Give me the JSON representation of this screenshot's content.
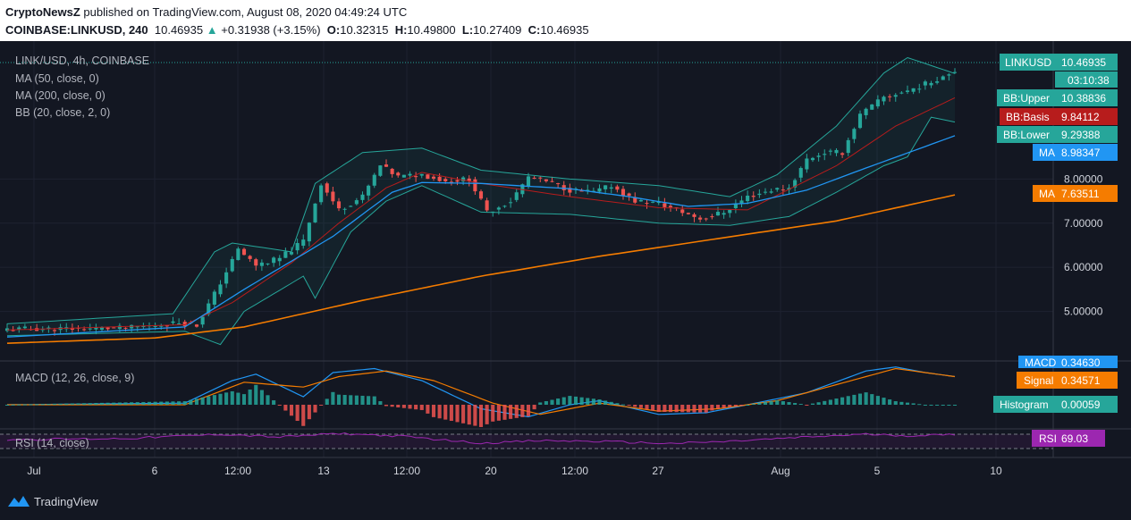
{
  "header": {
    "publisher": "CryptoNewsZ",
    "published_text": " published on TradingView.com, August 08, 2020 04:49:24 UTC",
    "symbol_line": "COINBASE:LINKUSD, 240",
    "last": "10.46935",
    "change_arrow": "▲",
    "change": "+0.31938 (+3.15%)",
    "open_label": "O:",
    "open": "10.32315",
    "high_label": "H:",
    "high": "10.49800",
    "low_label": "L:",
    "low": "10.27409",
    "close_label": "C:",
    "close": "10.46935"
  },
  "legend": {
    "title": "LINK/USD, 4h, COINBASE",
    "ma50": "MA (50, close, 0)",
    "ma200": "MA (200, close, 0)",
    "bb": "BB (20, close, 2, 0)",
    "macd": "MACD (12, 26, close, 9)",
    "rsi": "RSI (14, close)"
  },
  "tags": {
    "linkusd_label": "LINKUSD",
    "linkusd_value": "10.46935",
    "countdown": "03:10:38",
    "bb_upper_label": "BB:Upper",
    "bb_upper_value": "10.38836",
    "bb_basis_label": "BB:Basis",
    "bb_basis_value": "9.84112",
    "bb_lower_label": "BB:Lower",
    "bb_lower_value": "9.29388",
    "ma50_label": "MA",
    "ma50_value": "8.98347",
    "ma200_label": "MA",
    "ma200_value": "7.63511",
    "macd_label": "MACD",
    "macd_value": "0.34630",
    "signal_label": "Signal",
    "signal_value": "0.34571",
    "histogram_label": "Histogram",
    "histogram_value": "0.00059",
    "rsi_label": "RSI",
    "rsi_value": "69.03"
  },
  "footer": {
    "brand": "TradingView"
  },
  "colors": {
    "up": "#26a69a",
    "down": "#ef5350",
    "ma50": "#2196f3",
    "ma200": "#f57c00",
    "bb_basis": "#b71c1c",
    "bb_band": "#26a69a",
    "macd": "#2196f3",
    "signal": "#f57c00",
    "rsi": "#9c27b0",
    "background": "#131722"
  },
  "chart_data": {
    "type": "candlestick",
    "symbol": "LINK/USD",
    "interval": "4h",
    "exchange": "COINBASE",
    "price_ticks": [
      "8.00000",
      "7.00000",
      "6.00000",
      "5.00000"
    ],
    "price_range": [
      4.0,
      10.8
    ],
    "time_ticks": [
      "Jul",
      "6",
      "12:00",
      "13",
      "12:00",
      "20",
      "12:00",
      "27",
      "Aug",
      "5",
      "10"
    ],
    "close_path": [
      [
        0,
        4.6
      ],
      [
        20,
        4.62
      ],
      [
        26,
        4.7
      ],
      [
        29,
        4.75
      ],
      [
        32,
        4.68
      ],
      [
        35,
        5.4
      ],
      [
        37,
        5.9
      ],
      [
        39,
        6.4
      ],
      [
        42,
        6.05
      ],
      [
        46,
        6.2
      ],
      [
        50,
        6.6
      ],
      [
        53,
        7.9
      ],
      [
        56,
        7.3
      ],
      [
        60,
        7.6
      ],
      [
        63,
        8.3
      ],
      [
        66,
        8.05
      ],
      [
        70,
        8.1
      ],
      [
        74,
        7.95
      ],
      [
        78,
        8.0
      ],
      [
        81,
        7.25
      ],
      [
        85,
        7.5
      ],
      [
        88,
        8.05
      ],
      [
        92,
        7.9
      ],
      [
        95,
        7.75
      ],
      [
        99,
        7.7
      ],
      [
        102,
        7.85
      ],
      [
        106,
        7.5
      ],
      [
        110,
        7.45
      ],
      [
        113,
        7.3
      ],
      [
        117,
        7.1
      ],
      [
        121,
        7.25
      ],
      [
        125,
        7.6
      ],
      [
        129,
        7.75
      ],
      [
        132,
        7.8
      ],
      [
        135,
        8.45
      ],
      [
        138,
        8.6
      ],
      [
        141,
        8.6
      ],
      [
        144,
        9.45
      ],
      [
        148,
        9.85
      ],
      [
        152,
        10.0
      ],
      [
        156,
        10.2
      ],
      [
        160,
        10.47
      ]
    ],
    "ma50_path": [
      [
        0,
        4.42
      ],
      [
        30,
        4.65
      ],
      [
        40,
        5.5
      ],
      [
        55,
        6.7
      ],
      [
        65,
        7.7
      ],
      [
        70,
        7.92
      ],
      [
        80,
        7.9
      ],
      [
        95,
        7.78
      ],
      [
        105,
        7.6
      ],
      [
        115,
        7.38
      ],
      [
        125,
        7.45
      ],
      [
        135,
        7.75
      ],
      [
        145,
        8.25
      ],
      [
        160,
        8.98
      ]
    ],
    "ma200_path": [
      [
        0,
        4.28
      ],
      [
        25,
        4.4
      ],
      [
        40,
        4.65
      ],
      [
        60,
        5.25
      ],
      [
        80,
        5.8
      ],
      [
        100,
        6.25
      ],
      [
        120,
        6.65
      ],
      [
        140,
        7.05
      ],
      [
        160,
        7.64
      ]
    ],
    "bb_basis_path": [
      [
        0,
        4.58
      ],
      [
        30,
        4.7
      ],
      [
        38,
        5.2
      ],
      [
        48,
        6.1
      ],
      [
        56,
        7.0
      ],
      [
        64,
        7.8
      ],
      [
        70,
        8.15
      ],
      [
        80,
        7.9
      ],
      [
        95,
        7.6
      ],
      [
        110,
        7.35
      ],
      [
        125,
        7.3
      ],
      [
        140,
        8.3
      ],
      [
        150,
        9.2
      ],
      [
        160,
        9.84
      ]
    ],
    "bb_upper_path": [
      [
        0,
        4.72
      ],
      [
        28,
        4.95
      ],
      [
        35,
        6.35
      ],
      [
        38,
        6.55
      ],
      [
        48,
        6.35
      ],
      [
        52,
        7.9
      ],
      [
        60,
        8.6
      ],
      [
        70,
        8.7
      ],
      [
        80,
        8.2
      ],
      [
        95,
        8.0
      ],
      [
        110,
        7.85
      ],
      [
        122,
        7.6
      ],
      [
        130,
        8.1
      ],
      [
        140,
        9.2
      ],
      [
        148,
        10.4
      ],
      [
        152,
        10.75
      ],
      [
        160,
        10.39
      ]
    ],
    "bb_lower_path": [
      [
        0,
        4.45
      ],
      [
        30,
        4.55
      ],
      [
        36,
        4.25
      ],
      [
        40,
        5.0
      ],
      [
        50,
        5.8
      ],
      [
        52,
        5.3
      ],
      [
        58,
        6.8
      ],
      [
        64,
        7.5
      ],
      [
        70,
        7.85
      ],
      [
        80,
        7.25
      ],
      [
        95,
        7.2
      ],
      [
        110,
        7.0
      ],
      [
        122,
        6.95
      ],
      [
        132,
        7.15
      ],
      [
        140,
        7.7
      ],
      [
        148,
        8.3
      ],
      [
        152,
        8.5
      ],
      [
        156,
        9.4
      ],
      [
        160,
        9.29
      ]
    ],
    "macd_path": [
      [
        0,
        0
      ],
      [
        30,
        0.02
      ],
      [
        38,
        0.3
      ],
      [
        42,
        0.38
      ],
      [
        50,
        0.1
      ],
      [
        55,
        0.4
      ],
      [
        62,
        0.45
      ],
      [
        70,
        0.3
      ],
      [
        80,
        -0.05
      ],
      [
        88,
        -0.15
      ],
      [
        95,
        0.0
      ],
      [
        100,
        0.05
      ],
      [
        110,
        -0.12
      ],
      [
        118,
        -0.1
      ],
      [
        125,
        0.0
      ],
      [
        135,
        0.15
      ],
      [
        145,
        0.42
      ],
      [
        150,
        0.47
      ],
      [
        155,
        0.4
      ],
      [
        160,
        0.35
      ]
    ],
    "signal_path": [
      [
        0,
        0
      ],
      [
        30,
        0.0
      ],
      [
        40,
        0.28
      ],
      [
        50,
        0.22
      ],
      [
        56,
        0.35
      ],
      [
        64,
        0.42
      ],
      [
        72,
        0.3
      ],
      [
        82,
        0.02
      ],
      [
        90,
        -0.12
      ],
      [
        100,
        0.02
      ],
      [
        110,
        -0.08
      ],
      [
        120,
        -0.05
      ],
      [
        130,
        0.05
      ],
      [
        140,
        0.25
      ],
      [
        150,
        0.45
      ],
      [
        160,
        0.35
      ]
    ],
    "rsi_path": [
      [
        0,
        55
      ],
      [
        20,
        58
      ],
      [
        36,
        70
      ],
      [
        46,
        62
      ],
      [
        56,
        72
      ],
      [
        66,
        65
      ],
      [
        80,
        45
      ],
      [
        90,
        52
      ],
      [
        100,
        50
      ],
      [
        112,
        44
      ],
      [
        122,
        50
      ],
      [
        135,
        62
      ],
      [
        145,
        70
      ],
      [
        152,
        66
      ],
      [
        160,
        69
      ]
    ],
    "rsi_levels": [
      70,
      30
    ],
    "indicator_values": {
      "bb_upper": 10.38836,
      "bb_basis": 9.84112,
      "bb_lower": 9.29388,
      "ma50": 8.98347,
      "ma200": 7.63511,
      "macd": 0.3463,
      "signal": 0.34571,
      "histogram": 0.00059,
      "rsi": 69.03
    }
  }
}
